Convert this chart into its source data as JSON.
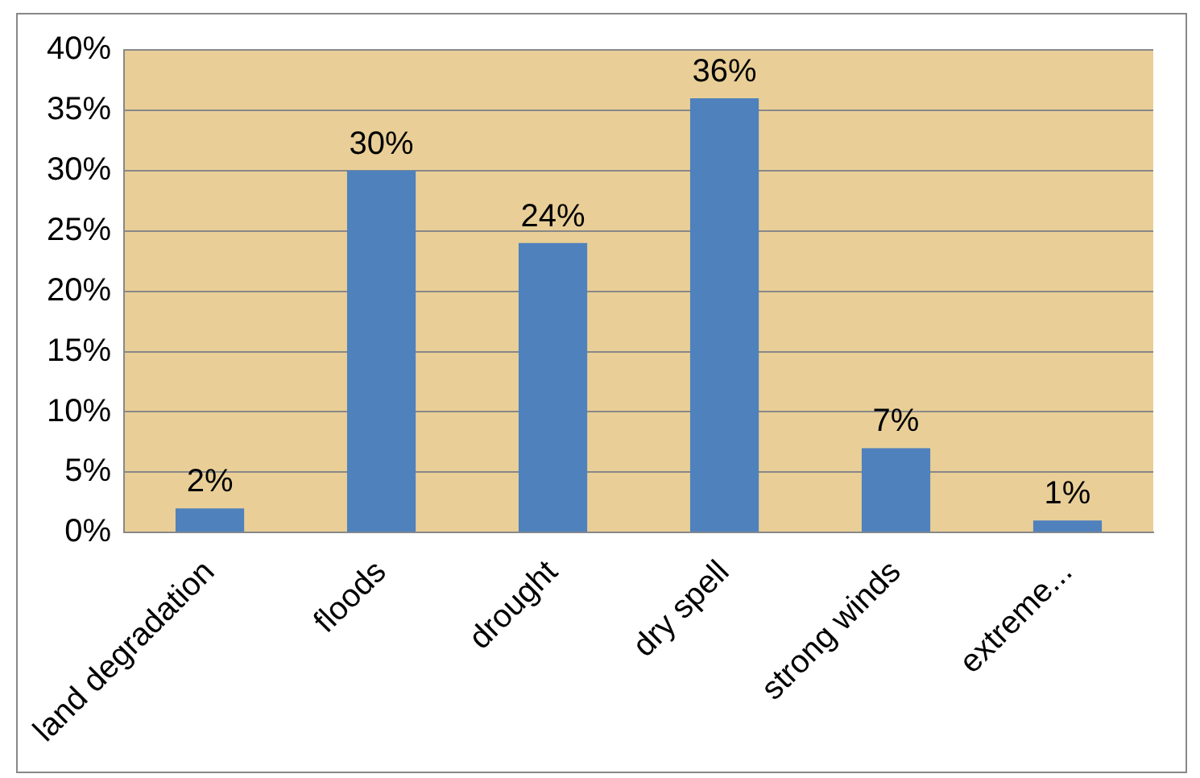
{
  "chart_data": {
    "type": "bar",
    "categories": [
      "land degradation",
      "floods",
      "drought",
      "dry spell",
      "strong winds",
      "extreme..."
    ],
    "values": [
      2,
      30,
      24,
      36,
      7,
      1
    ],
    "value_labels": [
      "2%",
      "30%",
      "24%",
      "36%",
      "7%",
      "1%"
    ],
    "color": "#4f81bd",
    "ylim": [
      0,
      40
    ],
    "yticks": [
      {
        "value": 0,
        "label": "0%"
      },
      {
        "value": 5,
        "label": "5%"
      },
      {
        "value": 10,
        "label": "10%"
      },
      {
        "value": 15,
        "label": "15%"
      },
      {
        "value": 20,
        "label": "20%"
      },
      {
        "value": 25,
        "label": "25%"
      },
      {
        "value": 30,
        "label": "30%"
      },
      {
        "value": 35,
        "label": "35%"
      },
      {
        "value": 40,
        "label": "40%"
      }
    ],
    "grid": "y"
  }
}
